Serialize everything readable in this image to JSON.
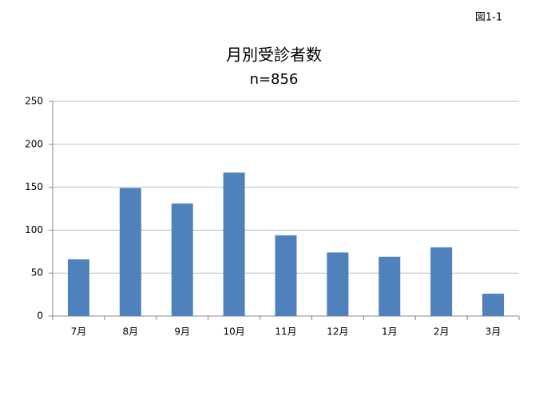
{
  "chart_data": {
    "type": "bar",
    "figure_label": "図1-1",
    "title": "月別受診者数",
    "subtitle": "n=856",
    "categories": [
      "7月",
      "8月",
      "9月",
      "10月",
      "11月",
      "12月",
      "1月",
      "2月",
      "3月"
    ],
    "values": [
      66,
      149,
      131,
      167,
      94,
      74,
      69,
      80,
      26
    ],
    "color": "#4f81bd",
    "ylim": [
      0,
      250
    ],
    "yticks": [
      0,
      50,
      100,
      150,
      200,
      250
    ],
    "grid": true
  }
}
